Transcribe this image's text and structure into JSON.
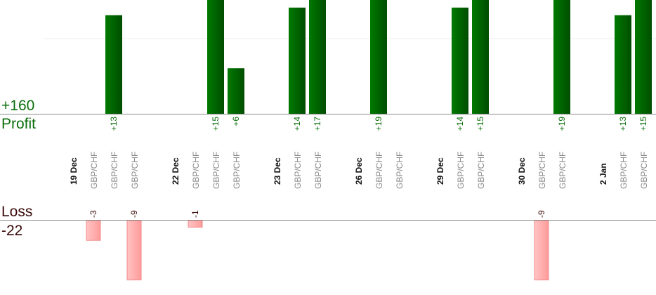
{
  "chart_data": {
    "type": "bar",
    "profit_label": "Profit",
    "loss_label": "Loss",
    "profit_total": "+160",
    "loss_total": "-22",
    "colors": {
      "profit": "#006400",
      "loss": "#ff9999",
      "profit_text": "#0a6e0a",
      "loss_text": "#3a0808",
      "date_text": "#111111",
      "pair_text": "#888888"
    },
    "columns": [
      {
        "kind": "date",
        "label": "19 Dec"
      },
      {
        "kind": "trade",
        "label": "GBP/CHF",
        "value": -3
      },
      {
        "kind": "trade",
        "label": "GBP/CHF",
        "value": 13
      },
      {
        "kind": "trade",
        "label": "GBP/CHF",
        "value": -9
      },
      {
        "kind": "gap"
      },
      {
        "kind": "date",
        "label": "22 Dec"
      },
      {
        "kind": "trade",
        "label": "GBP/CHF",
        "value": -1
      },
      {
        "kind": "trade",
        "label": "GBP/CHF",
        "value": 15
      },
      {
        "kind": "trade",
        "label": "GBP/CHF",
        "value": 6
      },
      {
        "kind": "gap"
      },
      {
        "kind": "date",
        "label": "23 Dec"
      },
      {
        "kind": "trade",
        "label": "GBP/CHF",
        "value": 14
      },
      {
        "kind": "trade",
        "label": "GBP/CHF",
        "value": 17
      },
      {
        "kind": "gap"
      },
      {
        "kind": "date",
        "label": "26 Dec"
      },
      {
        "kind": "trade",
        "label": "GBP/CHF",
        "value": 19
      },
      {
        "kind": "trade",
        "label": "GBP/CHF",
        "value": null
      },
      {
        "kind": "gap"
      },
      {
        "kind": "date",
        "label": "29 Dec"
      },
      {
        "kind": "trade",
        "label": "GBP/CHF",
        "value": 14
      },
      {
        "kind": "trade",
        "label": "GBP/CHF",
        "value": 15
      },
      {
        "kind": "gap"
      },
      {
        "kind": "date",
        "label": "30 Dec"
      },
      {
        "kind": "trade",
        "label": "GBP/CHF",
        "value": -9
      },
      {
        "kind": "trade",
        "label": "GBP/CHF",
        "value": 19
      },
      {
        "kind": "gap"
      },
      {
        "kind": "date",
        "label": "2 Jan"
      },
      {
        "kind": "trade",
        "label": "GBP/CHF",
        "value": 13
      },
      {
        "kind": "trade",
        "label": "GBP/CHF",
        "value": 15
      }
    ]
  }
}
